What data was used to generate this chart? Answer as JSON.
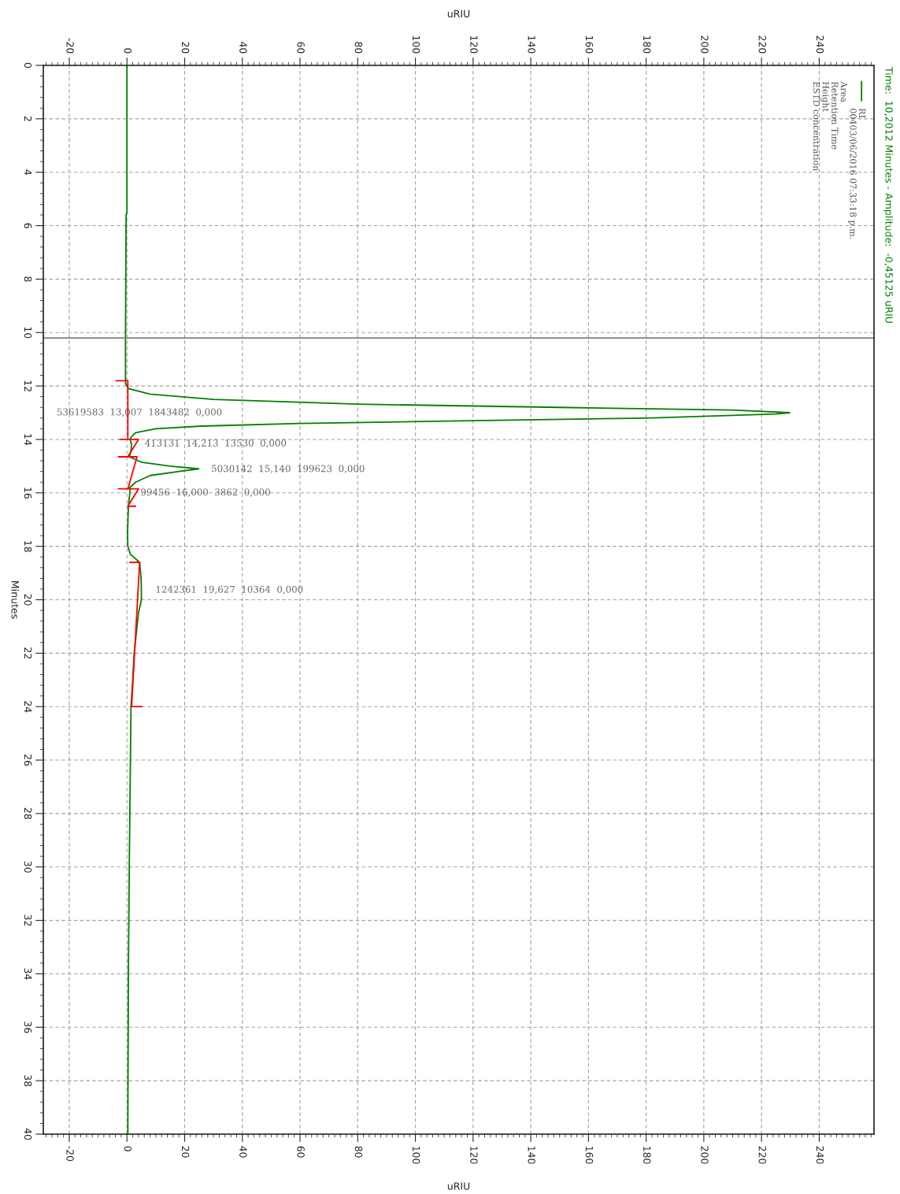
{
  "chart_data": {
    "type": "line",
    "orientation": "horizontal",
    "subtitle": "Time:  10,2012 Minutes - Amplitude:  -0,45125 uRIU",
    "xlabel": "uRIU",
    "x2label": "uRIU",
    "ylabel": "Minutes",
    "xlim": [
      -29,
      259
    ],
    "xticks": [
      -20,
      0,
      20,
      40,
      60,
      80,
      100,
      120,
      140,
      160,
      180,
      200,
      220,
      240
    ],
    "x2lim": [
      -29,
      259
    ],
    "x2ticks": [
      -20,
      0,
      20,
      40,
      60,
      80,
      100,
      120,
      140,
      160,
      180,
      200,
      220,
      240
    ],
    "ylim": [
      40,
      0
    ],
    "yticks": [
      0,
      2,
      4,
      6,
      8,
      10,
      12,
      14,
      16,
      18,
      20,
      22,
      24,
      26,
      28,
      30,
      32,
      34,
      36,
      38,
      40
    ],
    "grid": true,
    "legend": "top right",
    "series": [
      {
        "name": "RI",
        "color": "#008000",
        "x": [
          0,
          5.5,
          5.6,
          10,
          11.9,
          12.1,
          12.3,
          12.5,
          12.68,
          12.8,
          12.9,
          13.0,
          13.05,
          13.2,
          13.3,
          13.4,
          13.5,
          13.6,
          13.75,
          13.9,
          14.0,
          14.2,
          14.5,
          14.65,
          14.85,
          15.0,
          15.1,
          15.2,
          15.35,
          15.6,
          15.8,
          16.0,
          16.5,
          17.5,
          18.0,
          18.3,
          18.6,
          19.2,
          19.6,
          20.0,
          20.5,
          21,
          22,
          23,
          24,
          26,
          28,
          30,
          34,
          40
        ],
        "values": [
          0,
          0,
          -0.3,
          -0.5,
          -0.5,
          0.5,
          8,
          30,
          80,
          150,
          210,
          229.8,
          225,
          180,
          120,
          60,
          26,
          10,
          3,
          1.5,
          1.1,
          1.6,
          1.3,
          0.8,
          5,
          15,
          24.9,
          18,
          8,
          3,
          1,
          1,
          0.5,
          0.2,
          0.3,
          1.2,
          4.4,
          4.9,
          5,
          5,
          4,
          3.5,
          2.5,
          2,
          1.4,
          1.2,
          1,
          0.8,
          0.5,
          0.3
        ]
      },
      {
        "color": "#ff0000",
        "x": [
          11.8,
          11.8,
          14.0,
          14.0,
          14.0,
          14.65,
          14.65,
          14.65,
          15.85,
          15.85,
          15.85,
          16.5,
          16.5,
          17.5,
          18.6,
          18.6,
          24.0,
          24.0
        ],
        "values": [
          -3.8,
          0.3,
          0.3,
          -2.5,
          4,
          0.3,
          -3,
          3.5,
          0.3,
          -3,
          4,
          0.3,
          3,
          null,
          1,
          4.4,
          1.6,
          5.2
        ]
      }
    ],
    "ref_lines": [
      {
        "axis": "y",
        "value": 10.2012,
        "color": "#808080"
      }
    ],
    "annotations": [
      "00403/06/2016 07:33:18 p.m.",
      "Area",
      "Retention Time",
      "Height",
      "ESTD concentration",
      "53619583  13,007  1843482  0,000",
      "413131  14,213  13530  0,000",
      "5030142  15,140  199623  0,000",
      "99456  16,000  3862  0,000",
      "1242361  19,627  10364  0,000"
    ]
  }
}
